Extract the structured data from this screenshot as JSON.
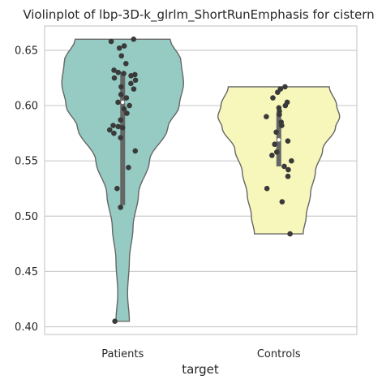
{
  "chart_data": {
    "type": "violin",
    "title": "Violinplot of lbp-3D-k_glrlm_ShortRunEmphasis for cistern",
    "xlabel": "target",
    "ylabel": "",
    "categories": [
      "Patients",
      "Controls"
    ],
    "ylim": [
      0.393,
      0.672
    ],
    "yticks": [
      0.4,
      0.45,
      0.5,
      0.55,
      0.6,
      0.65
    ],
    "ytick_labels": [
      "0.40",
      "0.45",
      "0.50",
      "0.55",
      "0.60",
      "0.65"
    ],
    "grid": true,
    "series": [
      {
        "category": "Patients",
        "color": "#95cbc2",
        "range": [
          0.405,
          0.66
        ],
        "box": {
          "q1": 0.51,
          "median": 0.603,
          "q3": 0.63
        },
        "density": [
          [
            0.405,
            0.11
          ],
          [
            0.43,
            0.08
          ],
          [
            0.46,
            0.11
          ],
          [
            0.49,
            0.17
          ],
          [
            0.52,
            0.26
          ],
          [
            0.55,
            0.44
          ],
          [
            0.58,
            0.74
          ],
          [
            0.6,
            0.93
          ],
          [
            0.62,
            1.0
          ],
          [
            0.64,
            0.96
          ],
          [
            0.66,
            0.78
          ]
        ],
        "points": [
          0.66,
          0.658,
          0.654,
          0.652,
          0.645,
          0.638,
          0.632,
          0.63,
          0.629,
          0.628,
          0.627,
          0.625,
          0.623,
          0.62,
          0.617,
          0.615,
          0.61,
          0.607,
          0.603,
          0.6,
          0.597,
          0.593,
          0.587,
          0.582,
          0.581,
          0.58,
          0.578,
          0.575,
          0.571,
          0.559,
          0.544,
          0.525,
          0.508,
          0.405
        ]
      },
      {
        "category": "Controls",
        "color": "#f7f7bb",
        "range": [
          0.484,
          0.617
        ],
        "box": {
          "q1": 0.545,
          "median": 0.569,
          "q3": 0.594
        },
        "density": [
          [
            0.484,
            0.4
          ],
          [
            0.5,
            0.45
          ],
          [
            0.52,
            0.52
          ],
          [
            0.54,
            0.6
          ],
          [
            0.56,
            0.72
          ],
          [
            0.58,
            0.93
          ],
          [
            0.59,
            1.0
          ],
          [
            0.6,
            0.95
          ],
          [
            0.617,
            0.83
          ]
        ],
        "points": [
          0.617,
          0.615,
          0.612,
          0.607,
          0.603,
          0.6,
          0.598,
          0.595,
          0.592,
          0.59,
          0.585,
          0.582,
          0.576,
          0.568,
          0.565,
          0.558,
          0.555,
          0.55,
          0.545,
          0.542,
          0.536,
          0.525,
          0.513,
          0.484
        ]
      }
    ]
  }
}
